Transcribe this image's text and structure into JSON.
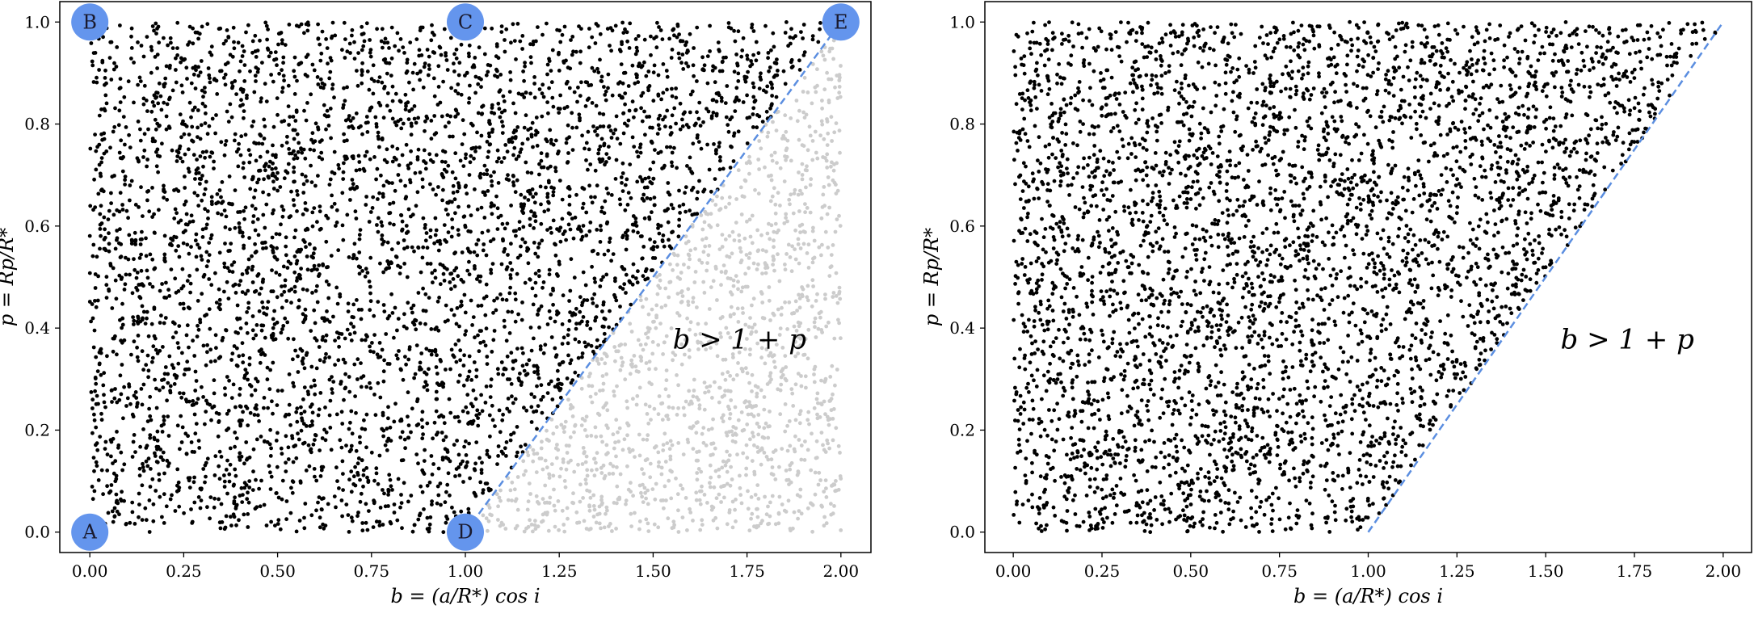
{
  "chart_data": [
    {
      "type": "scatter",
      "title": "",
      "xlabel": "b = (a/R*) cos i",
      "ylabel": "p = Rp/R*",
      "xlim": [
        -0.08,
        2.08
      ],
      "ylim": [
        -0.04,
        1.04
      ],
      "xticks": [
        "0.00",
        "0.25",
        "0.50",
        "0.75",
        "1.00",
        "1.25",
        "1.50",
        "1.75",
        "2.00"
      ],
      "yticks": [
        "0.0",
        "0.2",
        "0.4",
        "0.6",
        "0.8",
        "1.0"
      ],
      "grid": false,
      "domain": {
        "x": [
          0,
          2
        ],
        "y": [
          0,
          1
        ]
      },
      "boundary_line": {
        "x": [
          1.0,
          2.0
        ],
        "y": [
          0.0,
          1.0
        ],
        "color": "#5b8ee0",
        "style": "dashed"
      },
      "region_label": "b > 1 + p",
      "accepted_color": "#000000",
      "rejected_color": "#cccccc",
      "shows_rejected_points": true,
      "corner_markers": [
        {
          "label": "A",
          "x": 0,
          "y": 0
        },
        {
          "label": "B",
          "x": 0,
          "y": 1
        },
        {
          "label": "C",
          "x": 1,
          "y": 1
        },
        {
          "label": "D",
          "x": 1,
          "y": 0
        },
        {
          "label": "E",
          "x": 2,
          "y": 1
        }
      ],
      "marker_color": "#6495ed"
    },
    {
      "type": "scatter",
      "title": "",
      "xlabel": "b = (a/R*) cos i",
      "ylabel": "p = Rp/R*",
      "xlim": [
        -0.08,
        2.08
      ],
      "ylim": [
        -0.04,
        1.04
      ],
      "xticks": [
        "0.00",
        "0.25",
        "0.50",
        "0.75",
        "1.00",
        "1.25",
        "1.50",
        "1.75",
        "2.00"
      ],
      "yticks": [
        "0.0",
        "0.2",
        "0.4",
        "0.6",
        "0.8",
        "1.0"
      ],
      "grid": false,
      "domain": {
        "x": [
          0,
          2
        ],
        "y": [
          0,
          1
        ]
      },
      "boundary_line": {
        "x": [
          1.0,
          2.0
        ],
        "y": [
          0.0,
          1.0
        ],
        "color": "#5b8ee0",
        "style": "dashed"
      },
      "region_label": "b > 1 + p",
      "accepted_color": "#000000",
      "shows_rejected_points": false,
      "corner_markers": []
    }
  ]
}
